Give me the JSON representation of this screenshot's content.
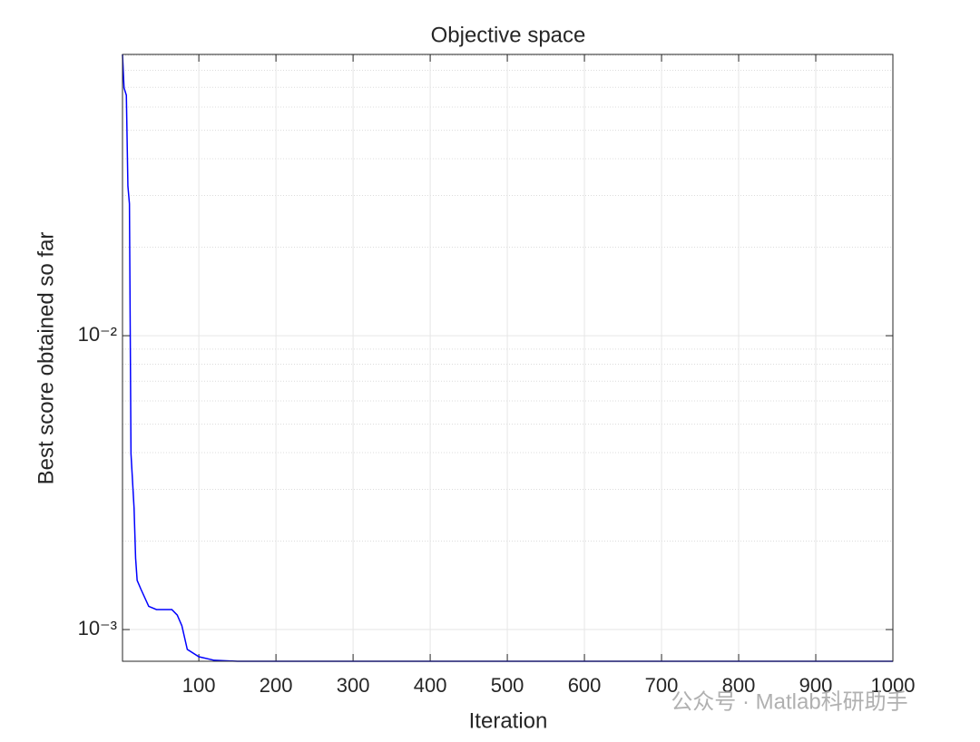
{
  "chart_data": {
    "type": "line",
    "title": "Objective space",
    "x_label": "Iteration",
    "y_label": "Best score obtained so far",
    "x": [
      1,
      3,
      6,
      8,
      10,
      12,
      16,
      18,
      20,
      25,
      35,
      45,
      65,
      72,
      78,
      85,
      100,
      120,
      150,
      1000
    ],
    "series": [
      {
        "color": "#0000ff",
        "values": [
          0.0906,
          0.0697,
          0.0658,
          0.0323,
          0.0281,
          0.00397,
          0.00259,
          0.00175,
          0.00147,
          0.00137,
          0.0012,
          0.00117,
          0.00117,
          0.00112,
          0.00103,
          0.000856,
          0.000808,
          0.000786,
          0.00078,
          0.00078
        ]
      }
    ],
    "xlim": [
      1,
      1000
    ],
    "xticks": [
      100,
      200,
      300,
      400,
      500,
      600,
      700,
      800,
      900,
      1000
    ],
    "ylim": [
      0.00078,
      0.0906
    ],
    "log_y": true,
    "yticks": [
      {
        "value": 0.001,
        "label": "10⁻³"
      },
      {
        "value": 0.01,
        "label": "10⁻²"
      }
    ],
    "yminor": [
      0.002,
      0.003,
      0.004,
      0.005,
      0.006,
      0.007,
      0.008,
      0.009,
      0.02,
      0.03,
      0.04,
      0.05,
      0.06,
      0.07,
      0.08,
      0.09
    ],
    "grid": true,
    "watermark": "公众号 · Matlab科研助手"
  }
}
